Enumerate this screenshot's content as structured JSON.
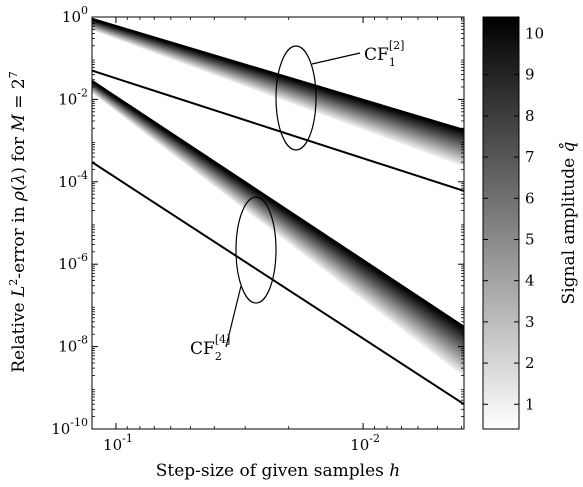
{
  "chart_data": {
    "type": "line",
    "xlabel": "Step-size of given samples h",
    "ylabel": "Relative L²-error in ρ(λ) for M = 2⁷",
    "x_scale": "log",
    "x_reversed": true,
    "y_scale": "log",
    "xlim": [
      0.125,
      0.00390625
    ],
    "ylim": [
      1e-10,
      1
    ],
    "x_ticks": [
      {
        "value": 0.1,
        "base": "10",
        "exp": "-1"
      },
      {
        "value": 0.01,
        "base": "10",
        "exp": "-2"
      }
    ],
    "y_ticks": [
      {
        "value": 1,
        "base": "10",
        "exp": "0"
      },
      {
        "value": 0.01,
        "base": "10",
        "exp": "-2"
      },
      {
        "value": 0.0001,
        "base": "10",
        "exp": "-4"
      },
      {
        "value": 1e-06,
        "base": "10",
        "exp": "-6"
      },
      {
        "value": 1e-08,
        "base": "10",
        "exp": "-8"
      },
      {
        "value": 1e-10,
        "base": "10",
        "exp": "-10"
      }
    ],
    "groups": [
      {
        "name": "CF1[2]",
        "label": {
          "main": "CF",
          "sub": "1",
          "sup": "[2]"
        },
        "order": 2,
        "x_range": [
          0.125,
          0.00390625
        ],
        "ref_line": {
          "y_start": 0.05,
          "y_end": 6e-05
        },
        "bundle_top": {
          "y_start": 0.9,
          "y_end": 0.0018
        },
        "bundle_bottom_end": 0.00025
      },
      {
        "name": "CF2[4]",
        "label": {
          "main": "CF",
          "sub": "2",
          "sup": "[4]"
        },
        "order": 4,
        "x_range": [
          0.125,
          0.00390625
        ],
        "ref_line": {
          "y_start": 0.0003,
          "y_end": 4e-10
        },
        "bundle_top": {
          "y_start": 0.028,
          "y_end": 3e-08
        },
        "bundle_bottom_end": 2e-09
      }
    ],
    "colorbar": {
      "label": "Signal amplitude q̊",
      "min": 0.4,
      "max": 10.4,
      "ticks": [
        1,
        2,
        3,
        4,
        5,
        6,
        7,
        8,
        9,
        10
      ],
      "colormap": [
        "#ffffff",
        "#000000"
      ]
    },
    "legend_position": "none",
    "grid": false
  }
}
